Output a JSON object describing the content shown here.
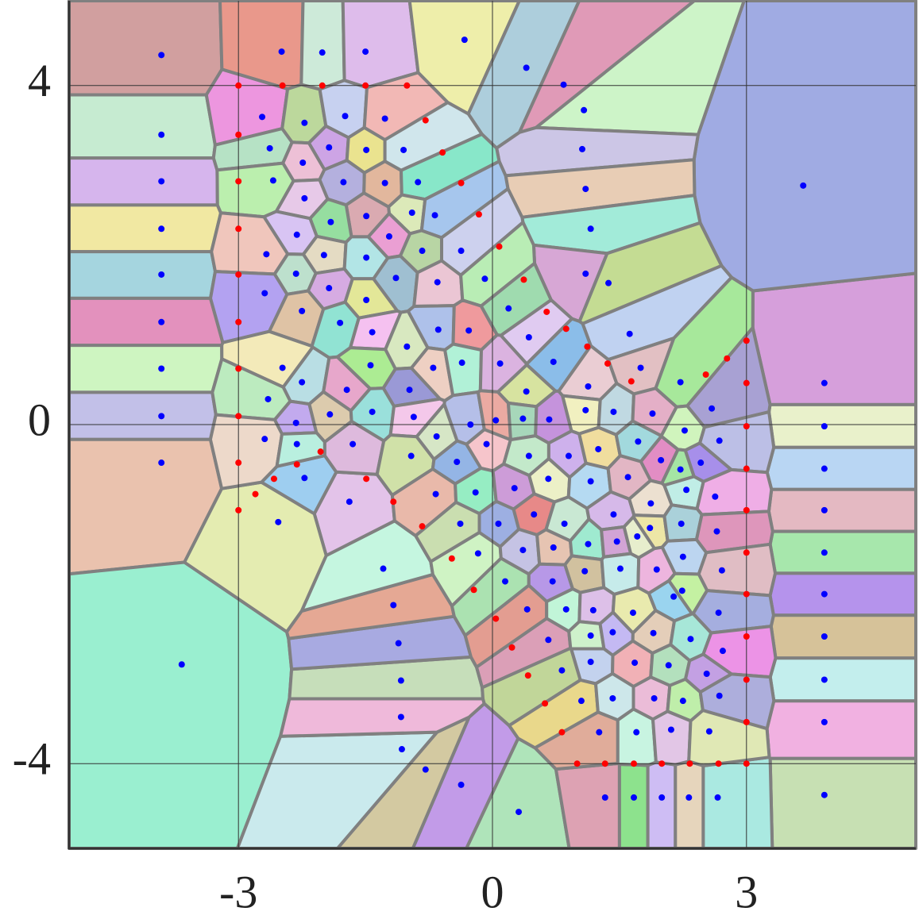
{
  "chart_data": {
    "type": "scatter",
    "xlim": [
      -5,
      5
    ],
    "ylim": [
      -5,
      5
    ],
    "xticks": [
      -3,
      0,
      3
    ],
    "yticks": [
      -4,
      0,
      4
    ],
    "grid": true,
    "voronoi": true,
    "series": [
      {
        "color": "#0000ff",
        "x": [
          -3.91,
          -3.91,
          -3.91,
          -3.91,
          -3.91,
          -3.91,
          -3.91,
          -3.91,
          -3.91,
          -3.67,
          3.92,
          3.92,
          3.92,
          3.92,
          3.92,
          3.92,
          3.92,
          3.92,
          3.92,
          3.92,
          3.67,
          -2.49,
          -2.01,
          -1.5,
          -0.33,
          0.4,
          0.84,
          1.08,
          1.06,
          1.1,
          1.16,
          1.1,
          1.37,
          1.62,
          1.75,
          0.31,
          -0.37,
          -0.79,
          -1.07,
          -1.08,
          -1.08,
          -1.11,
          -1.17,
          -1.29,
          -1.69,
          -2.53,
          -2.22,
          1.33,
          1.67,
          2.0,
          2.32,
          2.66,
          -2.72,
          -2.22,
          -1.74,
          -1.27,
          -2.63,
          -1.93,
          -1.49,
          -1.05,
          -2.24,
          -2.59,
          -1.76,
          -1.27,
          -0.88,
          -2.22,
          -0.95,
          -0.68,
          -1.49,
          -1.91,
          -2.31,
          -1.99,
          -1.49,
          -1.22,
          -0.83,
          -0.37,
          -2.67,
          -2.32,
          -1.93,
          -1.49,
          -1.14,
          -0.65,
          -0.09,
          -2.69,
          -2.25,
          -1.8,
          -1.42,
          -1.01,
          -0.64,
          -0.28,
          0.19,
          0.43,
          -2.48,
          -2.25,
          -1.72,
          -1.44,
          -0.98,
          -0.7,
          -0.36,
          0.09,
          0.4,
          0.72,
          1.13,
          -2.65,
          -2.32,
          -1.92,
          -1.42,
          -0.93,
          -0.66,
          -0.26,
          0.04,
          0.36,
          0.67,
          1.1,
          1.43,
          1.89,
          2.22,
          2.59,
          -2.69,
          -2.31,
          -1.65,
          -0.96,
          -0.42,
          -0.07,
          0.43,
          0.9,
          1.25,
          1.72,
          1.99,
          2.27,
          2.68,
          -0.67,
          -0.2,
          0.26,
          0.66,
          1.16,
          1.6,
          2.22,
          2.46,
          1.87,
          2.29,
          2.63,
          -0.38,
          0.07,
          0.49,
          0.85,
          1.43,
          1.86,
          2.23,
          2.65,
          -0.17,
          0.36,
          0.72,
          1.13,
          1.47,
          1.71,
          2.25,
          2.71,
          0.15,
          0.71,
          1.09,
          1.51,
          1.94,
          2.24,
          2.67,
          0.41,
          0.87,
          1.19,
          1.66,
          2.14,
          0.66,
          1.16,
          1.42,
          1.9,
          2.34,
          2.72,
          0.82,
          1.16,
          1.68,
          2.08,
          2.53,
          1.05,
          1.42,
          1.91,
          2.25,
          2.68,
          1.26,
          1.7,
          2.11,
          2.56
        ],
        "y": [
          4.36,
          3.42,
          2.87,
          2.31,
          1.77,
          1.21,
          0.66,
          0.1,
          -0.45,
          -2.83,
          0.49,
          -0.02,
          -0.52,
          -1.01,
          -1.51,
          -2.0,
          -2.5,
          -3.01,
          -3.51,
          -4.37,
          2.82,
          4.4,
          4.39,
          4.4,
          4.54,
          4.21,
          4.01,
          3.71,
          3.25,
          2.78,
          2.31,
          1.78,
          1.67,
          1.07,
          0.67,
          -4.57,
          -4.25,
          -4.07,
          -3.83,
          -3.45,
          -3.02,
          -2.58,
          -2.13,
          -1.7,
          -0.91,
          -1.15,
          -0.63,
          -4.4,
          -4.4,
          -4.4,
          -4.4,
          -4.4,
          3.63,
          3.56,
          3.64,
          3.61,
          3.26,
          3.27,
          3.24,
          3.24,
          3.09,
          2.88,
          2.86,
          2.85,
          2.86,
          2.67,
          2.5,
          2.47,
          2.46,
          2.39,
          2.24,
          2.0,
          1.97,
          2.22,
          2.05,
          2.05,
          2.01,
          1.78,
          1.61,
          1.47,
          1.73,
          1.68,
          1.72,
          1.55,
          1.34,
          1.2,
          1.09,
          0.92,
          1.12,
          1.11,
          1.37,
          1.03,
          0.67,
          0.5,
          0.41,
          0.7,
          0.41,
          0.67,
          0.73,
          0.72,
          0.39,
          0.74,
          0.45,
          0.3,
          0.02,
          0.12,
          0.15,
          0.09,
          -0.14,
          0.0,
          0.05,
          0.07,
          0.06,
          0.17,
          0.15,
          0.13,
          0.5,
          0.19,
          -0.17,
          -0.23,
          -0.23,
          -0.37,
          -0.44,
          -0.23,
          -0.37,
          -0.37,
          -0.29,
          -0.2,
          -0.42,
          -0.07,
          -0.19,
          -0.82,
          -0.8,
          -0.75,
          -0.64,
          -0.67,
          -0.62,
          -0.53,
          -0.45,
          -0.93,
          -0.77,
          -0.85,
          -1.17,
          -1.17,
          -1.06,
          -1.17,
          -1.06,
          -1.22,
          -1.17,
          -1.26,
          -1.52,
          -1.48,
          -1.45,
          -1.41,
          -1.38,
          -1.32,
          -1.56,
          -1.72,
          -1.85,
          -1.85,
          -1.73,
          -1.7,
          -1.71,
          -1.96,
          -2.22,
          -2.18,
          -2.18,
          -2.19,
          -2.22,
          -2.03,
          -2.54,
          -2.49,
          -2.45,
          -2.46,
          -2.53,
          -2.67,
          -2.9,
          -2.8,
          -2.81,
          -2.84,
          -2.94,
          -3.26,
          -3.23,
          -3.23,
          -3.26,
          -3.2,
          -3.63,
          -3.63,
          -3.6,
          -3.62
        ]
      },
      {
        "color": "#ff0000",
        "x": [
          -3,
          -3,
          -3,
          -3,
          -3,
          -3,
          -3,
          -3,
          -3,
          -3,
          -2.48,
          -2.01,
          -1.5,
          -1.01,
          3,
          3,
          3,
          3,
          3,
          3,
          3,
          3,
          3,
          3,
          3,
          1.0,
          1.33,
          1.67,
          2.0,
          2.33,
          2.67,
          -0.79,
          -0.59,
          -0.37,
          -0.16,
          0.08,
          0.37,
          0.64,
          0.87,
          1.12,
          1.36,
          1.64,
          2.52,
          2.77,
          0.82,
          0.62,
          0.42,
          0.23,
          0.04,
          -0.22,
          -0.48,
          -0.83,
          -1.17,
          -1.49,
          -2.03,
          -2.31,
          -2.58,
          -2.8
        ],
        "y": [
          4.0,
          3.42,
          2.87,
          2.31,
          1.77,
          1.21,
          0.66,
          0.1,
          -0.45,
          -1.01,
          4.0,
          4.0,
          4.0,
          4.0,
          0.99,
          0.49,
          -0.02,
          -0.52,
          -1.01,
          -1.51,
          -2.0,
          -2.5,
          -3.01,
          -3.51,
          -4.0,
          -4.0,
          -4.0,
          -4.0,
          -4.0,
          -4.0,
          -4.0,
          3.59,
          3.21,
          2.85,
          2.48,
          2.1,
          1.71,
          1.33,
          1.13,
          0.92,
          0.72,
          0.51,
          0.59,
          0.78,
          -3.63,
          -3.29,
          -2.96,
          -2.63,
          -2.29,
          -1.95,
          -1.58,
          -1.2,
          -0.91,
          -0.64,
          -0.32,
          -0.47,
          -0.64,
          -0.82
        ]
      }
    ]
  }
}
